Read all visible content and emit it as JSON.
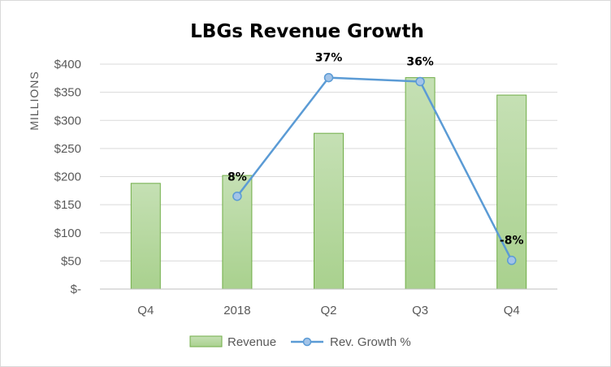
{
  "chart_data": {
    "type": "bar",
    "title": "LBGs  Revenue Growth",
    "ylabel": "MILLIONS",
    "xlabel": "",
    "ylim": [
      0,
      400
    ],
    "yticks": [
      0,
      50,
      100,
      150,
      200,
      250,
      300,
      350,
      400
    ],
    "ytick_labels": [
      "$-",
      "$50",
      "$100",
      "$150",
      "$200",
      "$250",
      "$300",
      "$350",
      "$400"
    ],
    "categories": [
      "Q4",
      "2018",
      "Q2",
      "Q3",
      "Q4"
    ],
    "grid": true,
    "legend_position": "bottom",
    "series": [
      {
        "name": "Revenue",
        "kind": "bar",
        "values": [
          188,
          202,
          277,
          376,
          345
        ],
        "color": "#a9d18e",
        "edge_color": "#70ad47"
      },
      {
        "name": "Rev. Growth %",
        "kind": "line",
        "values": [
          null,
          8,
          37,
          36,
          -8
        ],
        "plotted_on_revenue_axis": [
          null,
          165,
          376,
          369,
          51
        ],
        "data_labels": [
          "",
          "8%",
          "37%",
          "36%",
          "-8%"
        ],
        "color": "#5b9bd5",
        "marker_fill": "#a3c4e8"
      }
    ]
  }
}
